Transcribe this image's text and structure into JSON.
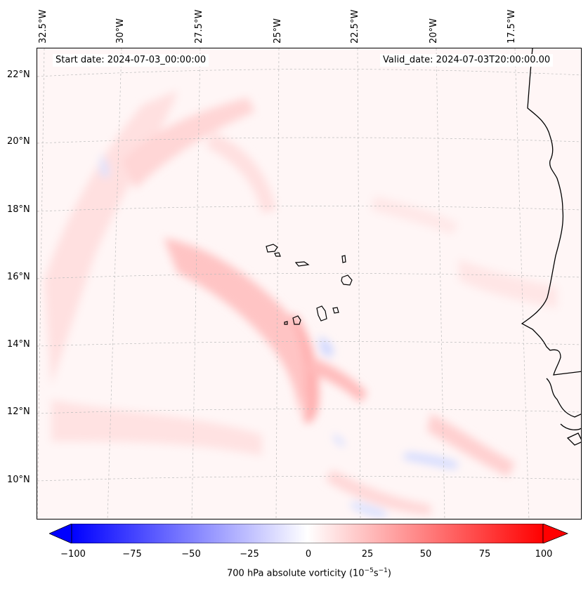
{
  "header": {
    "start_date": "Start date: 2024-07-03_00:00:00",
    "valid_date": "Valid_date: 2024-07-03T20:00:00.00"
  },
  "longitude_labels": [
    "32.5°W",
    "30°W",
    "27.5°W",
    "25°W",
    "22.5°W",
    "20°W",
    "17.5°W"
  ],
  "latitude_labels": [
    "22°N",
    "20°N",
    "18°N",
    "16°N",
    "14°N",
    "12°N",
    "10°N"
  ],
  "colorbar": {
    "ticks": [
      "−100",
      "−75",
      "−50",
      "−25",
      "0",
      "25",
      "50",
      "75",
      "100"
    ],
    "label": "700 hPa absolute vorticity (10",
    "label_exp1": "−5",
    "label_mid": "s",
    "label_exp2": "−1",
    "label_end": ")",
    "min": -100,
    "max": 100,
    "colors": {
      "negative": "#0000ff",
      "zero": "#ffffff",
      "positive": "#ff0000"
    }
  },
  "colors": {
    "coastline": "#000000",
    "grid": "#bbbbbb"
  }
}
